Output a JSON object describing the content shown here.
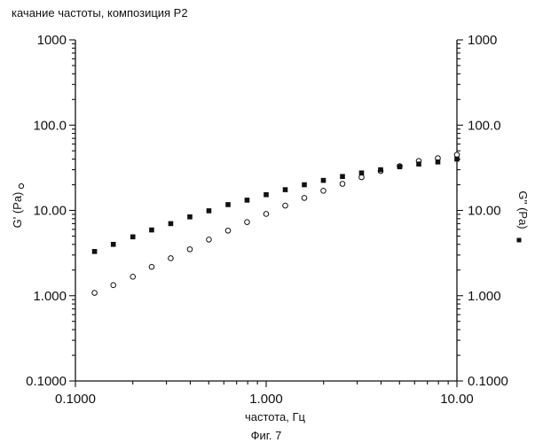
{
  "chart_data": {
    "type": "scatter",
    "title": "качание частоты, композиция P2",
    "xlabel": "частота, Гц",
    "ylabel_left": "G' (Pa)",
    "ylabel_right": "G'' (Pa)",
    "caption": "Фиг. 7",
    "x_scale": "log",
    "y_scale": "log",
    "xlim": [
      0.1,
      10
    ],
    "ylim": [
      0.1,
      1000
    ],
    "grid": false,
    "x_tick_labels": [
      "0.1000",
      "1.000",
      "10.00"
    ],
    "y_left_tick_labels": [
      "1000",
      "100.0",
      "10.00",
      "1.000",
      "0.1000"
    ],
    "y_right_tick_labels": [
      "1000",
      "100.0",
      "10.00",
      "1.000",
      "0.1000"
    ],
    "series": [
      {
        "name": "G' (Pa)",
        "marker": "open-circle",
        "x": [
          0.126,
          0.158,
          0.2,
          0.251,
          0.316,
          0.398,
          0.501,
          0.631,
          0.794,
          1.0,
          1.259,
          1.585,
          1.995,
          2.512,
          3.162,
          3.981,
          5.012,
          6.31,
          7.943,
          10.0
        ],
        "y": [
          1.08,
          1.33,
          1.67,
          2.18,
          2.75,
          3.5,
          4.55,
          5.8,
          7.3,
          9.1,
          11.4,
          14.0,
          17.0,
          20.5,
          24.5,
          29.0,
          33.0,
          38.0,
          41.0,
          45.0
        ]
      },
      {
        "name": "G'' (Pa)",
        "marker": "filled-square",
        "x": [
          0.126,
          0.158,
          0.2,
          0.251,
          0.316,
          0.398,
          0.501,
          0.631,
          0.794,
          1.0,
          1.259,
          1.585,
          1.995,
          2.512,
          3.162,
          3.981,
          5.012,
          6.31,
          7.943,
          10.0
        ],
        "y": [
          3.3,
          4.0,
          4.9,
          5.9,
          7.0,
          8.4,
          9.9,
          11.7,
          13.2,
          15.3,
          17.5,
          20.0,
          22.5,
          25.0,
          27.5,
          30.0,
          32.5,
          35.0,
          37.0,
          40.0
        ]
      }
    ]
  }
}
